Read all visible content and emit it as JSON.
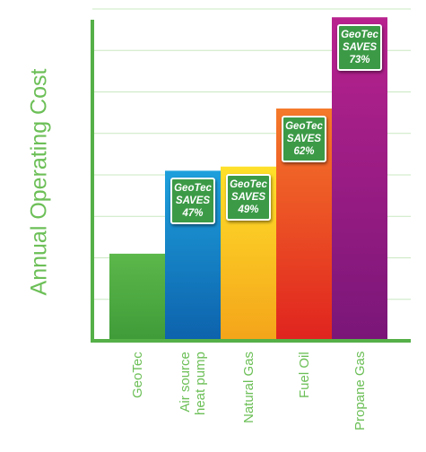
{
  "chart_data": {
    "type": "bar",
    "title": "",
    "xlabel": "",
    "ylabel": "Annual Operating Cost",
    "categories": [
      "GeoTec",
      "Air source heat pump",
      "Natural Gas",
      "Fuel Oil",
      "Propane Gas"
    ],
    "category_lines": [
      [
        "GeoTec"
      ],
      [
        "Air source",
        "heat pump"
      ],
      [
        "Natural Gas"
      ],
      [
        "Fuel Oil"
      ],
      [
        "Propane Gas"
      ]
    ],
    "values": [
      2.1,
      4.1,
      4.2,
      5.6,
      7.8
    ],
    "ylim": [
      0,
      8
    ],
    "grid": true,
    "bar_colors": [
      [
        "#5cb84a",
        "#3f9b38"
      ],
      [
        "#1ea0dc",
        "#0d62ac"
      ],
      [
        "#ffe02a",
        "#f4a41a"
      ],
      [
        "#f57a2a",
        "#e0231f"
      ],
      [
        "#b8228f",
        "#7a1678"
      ]
    ],
    "annotations": [
      null,
      {
        "lines": [
          "GeoTec",
          "SAVES",
          "47%"
        ]
      },
      {
        "lines": [
          "GeoTec",
          "SAVES",
          "49%"
        ]
      },
      {
        "lines": [
          "GeoTec",
          "SAVES",
          "62%"
        ]
      },
      {
        "lines": [
          "GeoTec",
          "SAVES",
          "73%"
        ]
      }
    ],
    "axis_color": "#55b048",
    "grid_color": "#c9e8c1",
    "badge_color": "#3c9a47"
  }
}
